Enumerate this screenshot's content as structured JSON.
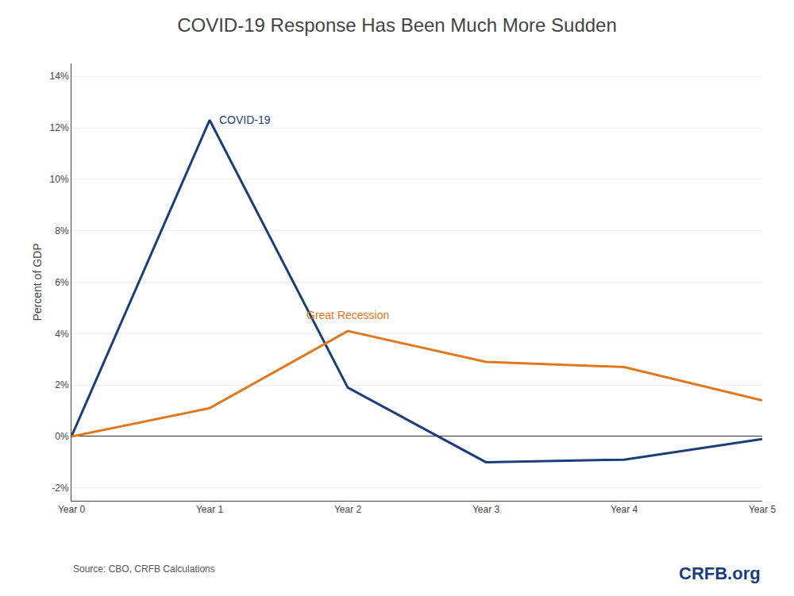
{
  "chart_data": {
    "type": "line",
    "title": "COVID-19 Response Has Been Much More Sudden",
    "ylabel": "Percent of GDP",
    "categories": [
      "Year 0",
      "Year 1",
      "Year 2",
      "Year 3",
      "Year 4",
      "Year 5"
    ],
    "series": [
      {
        "name": "COVID-19",
        "color": "#1b3d7a",
        "values": [
          0.0,
          12.3,
          1.9,
          -1.0,
          -0.9,
          -0.1
        ]
      },
      {
        "name": "Great Recession",
        "color": "#e07820",
        "values": [
          0.0,
          1.1,
          4.1,
          2.9,
          2.7,
          1.4
        ]
      }
    ],
    "ylim": [
      -2.5,
      14.5
    ],
    "yticks": [
      {
        "value": -2,
        "label": "-2%"
      },
      {
        "value": 0,
        "label": "0%"
      },
      {
        "value": 2,
        "label": "2%"
      },
      {
        "value": 4,
        "label": "4%"
      },
      {
        "value": 6,
        "label": "6%"
      },
      {
        "value": 8,
        "label": "8%"
      },
      {
        "value": 10,
        "label": "10%"
      },
      {
        "value": 12,
        "label": "12%"
      },
      {
        "value": 14,
        "label": "14%"
      }
    ],
    "grid": true,
    "annotations": [
      "Source: CBO, CRFB Calculations",
      "CRFB.org"
    ]
  }
}
